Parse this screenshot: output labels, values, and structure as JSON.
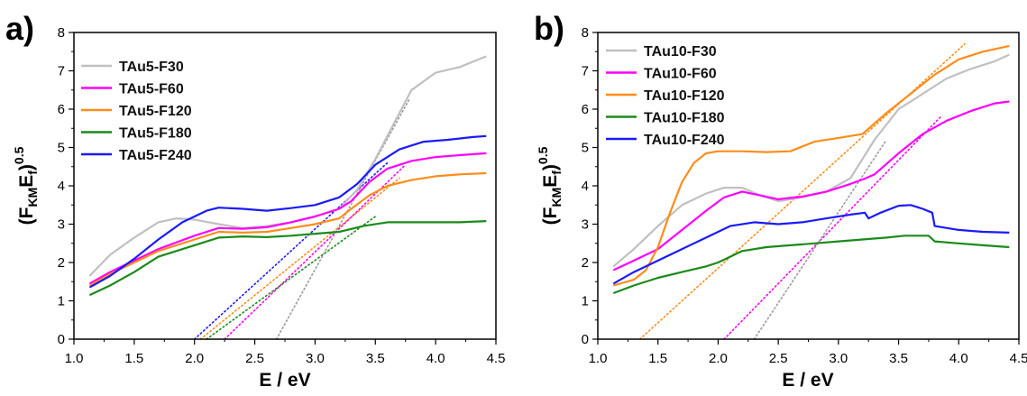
{
  "chart_data": [
    {
      "type": "line",
      "panel_label": "a)",
      "xlabel": "E / eV",
      "ylabel": "(F_KM E_f)^0.5",
      "xlim": [
        1.0,
        4.5
      ],
      "ylim": [
        0,
        8
      ],
      "xticks": [
        "1.0",
        "1.5",
        "2.0",
        "2.5",
        "3.0",
        "3.5",
        "4.0",
        "4.5"
      ],
      "yticks": [
        "0",
        "1",
        "2",
        "3",
        "4",
        "5",
        "6",
        "7",
        "8"
      ],
      "legend_position": "top-left",
      "series": [
        {
          "name": "TAu5-F30",
          "color": "#c0c0c0",
          "x": [
            1.13,
            1.3,
            1.5,
            1.7,
            1.85,
            2.0,
            2.2,
            2.4,
            2.6,
            2.8,
            3.0,
            3.2,
            3.35,
            3.5,
            3.65,
            3.8,
            4.0,
            4.2,
            4.42
          ],
          "y": [
            1.65,
            2.2,
            2.65,
            3.05,
            3.15,
            3.12,
            3.0,
            2.9,
            2.95,
            3.05,
            3.2,
            3.4,
            3.9,
            4.7,
            5.6,
            6.5,
            6.95,
            7.1,
            7.38
          ]
        },
        {
          "name": "TAu5-F60",
          "color": "#ff00ff",
          "x": [
            1.13,
            1.3,
            1.5,
            1.7,
            2.0,
            2.2,
            2.4,
            2.6,
            2.8,
            3.0,
            3.2,
            3.3,
            3.45,
            3.6,
            3.8,
            4.0,
            4.2,
            4.42
          ],
          "y": [
            1.45,
            1.75,
            2.05,
            2.35,
            2.7,
            2.9,
            2.88,
            2.92,
            3.05,
            3.2,
            3.4,
            3.6,
            4.1,
            4.45,
            4.65,
            4.75,
            4.8,
            4.85
          ]
        },
        {
          "name": "TAu5-F120",
          "color": "#ff8c1a",
          "x": [
            1.13,
            1.3,
            1.5,
            1.7,
            2.0,
            2.2,
            2.4,
            2.6,
            2.8,
            3.0,
            3.2,
            3.3,
            3.45,
            3.6,
            3.8,
            4.0,
            4.2,
            4.42
          ],
          "y": [
            1.4,
            1.7,
            2.0,
            2.3,
            2.6,
            2.8,
            2.78,
            2.8,
            2.9,
            3.0,
            3.15,
            3.4,
            3.75,
            4.0,
            4.15,
            4.25,
            4.3,
            4.33
          ]
        },
        {
          "name": "TAu5-F180",
          "color": "#1a8a1a",
          "x": [
            1.13,
            1.3,
            1.5,
            1.7,
            2.0,
            2.2,
            2.4,
            2.6,
            2.8,
            3.0,
            3.2,
            3.4,
            3.6,
            3.8,
            4.0,
            4.2,
            4.42
          ],
          "y": [
            1.15,
            1.4,
            1.75,
            2.15,
            2.45,
            2.65,
            2.68,
            2.66,
            2.7,
            2.75,
            2.8,
            2.95,
            3.05,
            3.05,
            3.05,
            3.05,
            3.08
          ]
        },
        {
          "name": "TAu5-F240",
          "color": "#1a1aff",
          "x": [
            1.13,
            1.3,
            1.5,
            1.7,
            1.9,
            2.1,
            2.2,
            2.4,
            2.6,
            2.8,
            3.0,
            3.2,
            3.35,
            3.5,
            3.7,
            3.9,
            4.1,
            4.3,
            4.42
          ],
          "y": [
            1.35,
            1.65,
            2.1,
            2.6,
            3.05,
            3.35,
            3.43,
            3.4,
            3.35,
            3.42,
            3.5,
            3.7,
            4.05,
            4.55,
            4.95,
            5.15,
            5.2,
            5.27,
            5.3
          ]
        }
      ],
      "fit_lines": [
        {
          "color": "#1a1aff",
          "x": [
            2.0,
            3.6
          ],
          "y": [
            0,
            4.6
          ]
        },
        {
          "color": "#ff8c1a",
          "x": [
            2.05,
            3.7
          ],
          "y": [
            0,
            4.2
          ]
        },
        {
          "color": "#ff00ff",
          "x": [
            2.25,
            3.75
          ],
          "y": [
            0,
            4.55
          ]
        },
        {
          "color": "#1a8a1a",
          "x": [
            2.1,
            3.5
          ],
          "y": [
            0,
            3.2
          ]
        },
        {
          "color": "#9a9a9a",
          "x": [
            2.68,
            3.78
          ],
          "y": [
            0,
            6.25
          ]
        }
      ]
    },
    {
      "type": "line",
      "panel_label": "b)",
      "xlabel": "E / eV",
      "ylabel": "(F_KM E_f)^0.5",
      "xlim": [
        1.0,
        4.5
      ],
      "ylim": [
        0,
        8
      ],
      "xticks": [
        "1.0",
        "1.5",
        "2.0",
        "2.5",
        "3.0",
        "3.5",
        "4.0",
        "4.5"
      ],
      "yticks": [
        "0",
        "1",
        "2",
        "3",
        "4",
        "5",
        "6",
        "7",
        "8"
      ],
      "legend_position": "top-left",
      "series": [
        {
          "name": "TAu10-F30",
          "color": "#c0c0c0",
          "x": [
            1.13,
            1.3,
            1.5,
            1.7,
            1.9,
            2.05,
            2.2,
            2.35,
            2.5,
            2.7,
            2.9,
            3.1,
            3.3,
            3.5,
            3.7,
            3.9,
            4.1,
            4.3,
            4.42
          ],
          "y": [
            1.9,
            2.35,
            2.95,
            3.5,
            3.8,
            3.95,
            3.95,
            3.75,
            3.6,
            3.7,
            3.85,
            4.2,
            5.2,
            6.0,
            6.4,
            6.8,
            7.05,
            7.25,
            7.42
          ]
        },
        {
          "name": "TAu10-F60",
          "color": "#ff00ff",
          "x": [
            1.13,
            1.3,
            1.5,
            1.7,
            1.9,
            2.05,
            2.2,
            2.35,
            2.5,
            2.7,
            2.9,
            3.1,
            3.23,
            3.3,
            3.5,
            3.7,
            3.9,
            4.1,
            4.3,
            4.42
          ],
          "y": [
            1.8,
            2.05,
            2.35,
            2.85,
            3.35,
            3.7,
            3.85,
            3.75,
            3.65,
            3.72,
            3.85,
            4.05,
            4.2,
            4.3,
            4.85,
            5.35,
            5.7,
            5.95,
            6.15,
            6.2
          ]
        },
        {
          "name": "TAu10-F120",
          "color": "#ff8c1a",
          "x": [
            1.13,
            1.3,
            1.4,
            1.5,
            1.6,
            1.7,
            1.8,
            1.9,
            2.0,
            2.2,
            2.4,
            2.6,
            2.8,
            3.0,
            3.2,
            3.4,
            3.6,
            3.8,
            4.0,
            4.2,
            4.42
          ],
          "y": [
            1.4,
            1.55,
            1.8,
            2.4,
            3.3,
            4.1,
            4.6,
            4.85,
            4.9,
            4.9,
            4.88,
            4.9,
            5.15,
            5.25,
            5.35,
            5.9,
            6.4,
            6.9,
            7.3,
            7.5,
            7.65
          ]
        },
        {
          "name": "TAu10-F180",
          "color": "#1a8a1a",
          "x": [
            1.13,
            1.3,
            1.5,
            1.7,
            1.9,
            2.0,
            2.1,
            2.2,
            2.4,
            2.6,
            2.8,
            3.0,
            3.2,
            3.4,
            3.55,
            3.75,
            3.8,
            4.0,
            4.2,
            4.42
          ],
          "y": [
            1.2,
            1.4,
            1.6,
            1.75,
            1.9,
            2.0,
            2.15,
            2.3,
            2.4,
            2.45,
            2.5,
            2.55,
            2.6,
            2.65,
            2.7,
            2.7,
            2.55,
            2.5,
            2.45,
            2.4
          ]
        },
        {
          "name": "TAu10-F240",
          "color": "#1a1aff",
          "x": [
            1.13,
            1.3,
            1.5,
            1.7,
            1.9,
            2.1,
            2.3,
            2.5,
            2.7,
            2.9,
            3.1,
            3.22,
            3.25,
            3.35,
            3.5,
            3.6,
            3.7,
            3.78,
            3.8,
            4.0,
            4.2,
            4.42
          ],
          "y": [
            1.45,
            1.75,
            2.05,
            2.35,
            2.65,
            2.95,
            3.05,
            3.0,
            3.05,
            3.15,
            3.25,
            3.3,
            3.15,
            3.3,
            3.48,
            3.5,
            3.4,
            3.3,
            2.95,
            2.85,
            2.8,
            2.78
          ]
        }
      ],
      "fit_lines": [
        {
          "color": "#ff8c1a",
          "x": [
            1.35,
            4.05
          ],
          "y": [
            0,
            7.7
          ]
        },
        {
          "color": "#ff00ff",
          "x": [
            2.05,
            3.85
          ],
          "y": [
            0,
            5.8
          ]
        },
        {
          "color": "#9a9a9a",
          "x": [
            2.3,
            3.4
          ],
          "y": [
            0,
            5.2
          ]
        }
      ]
    }
  ]
}
